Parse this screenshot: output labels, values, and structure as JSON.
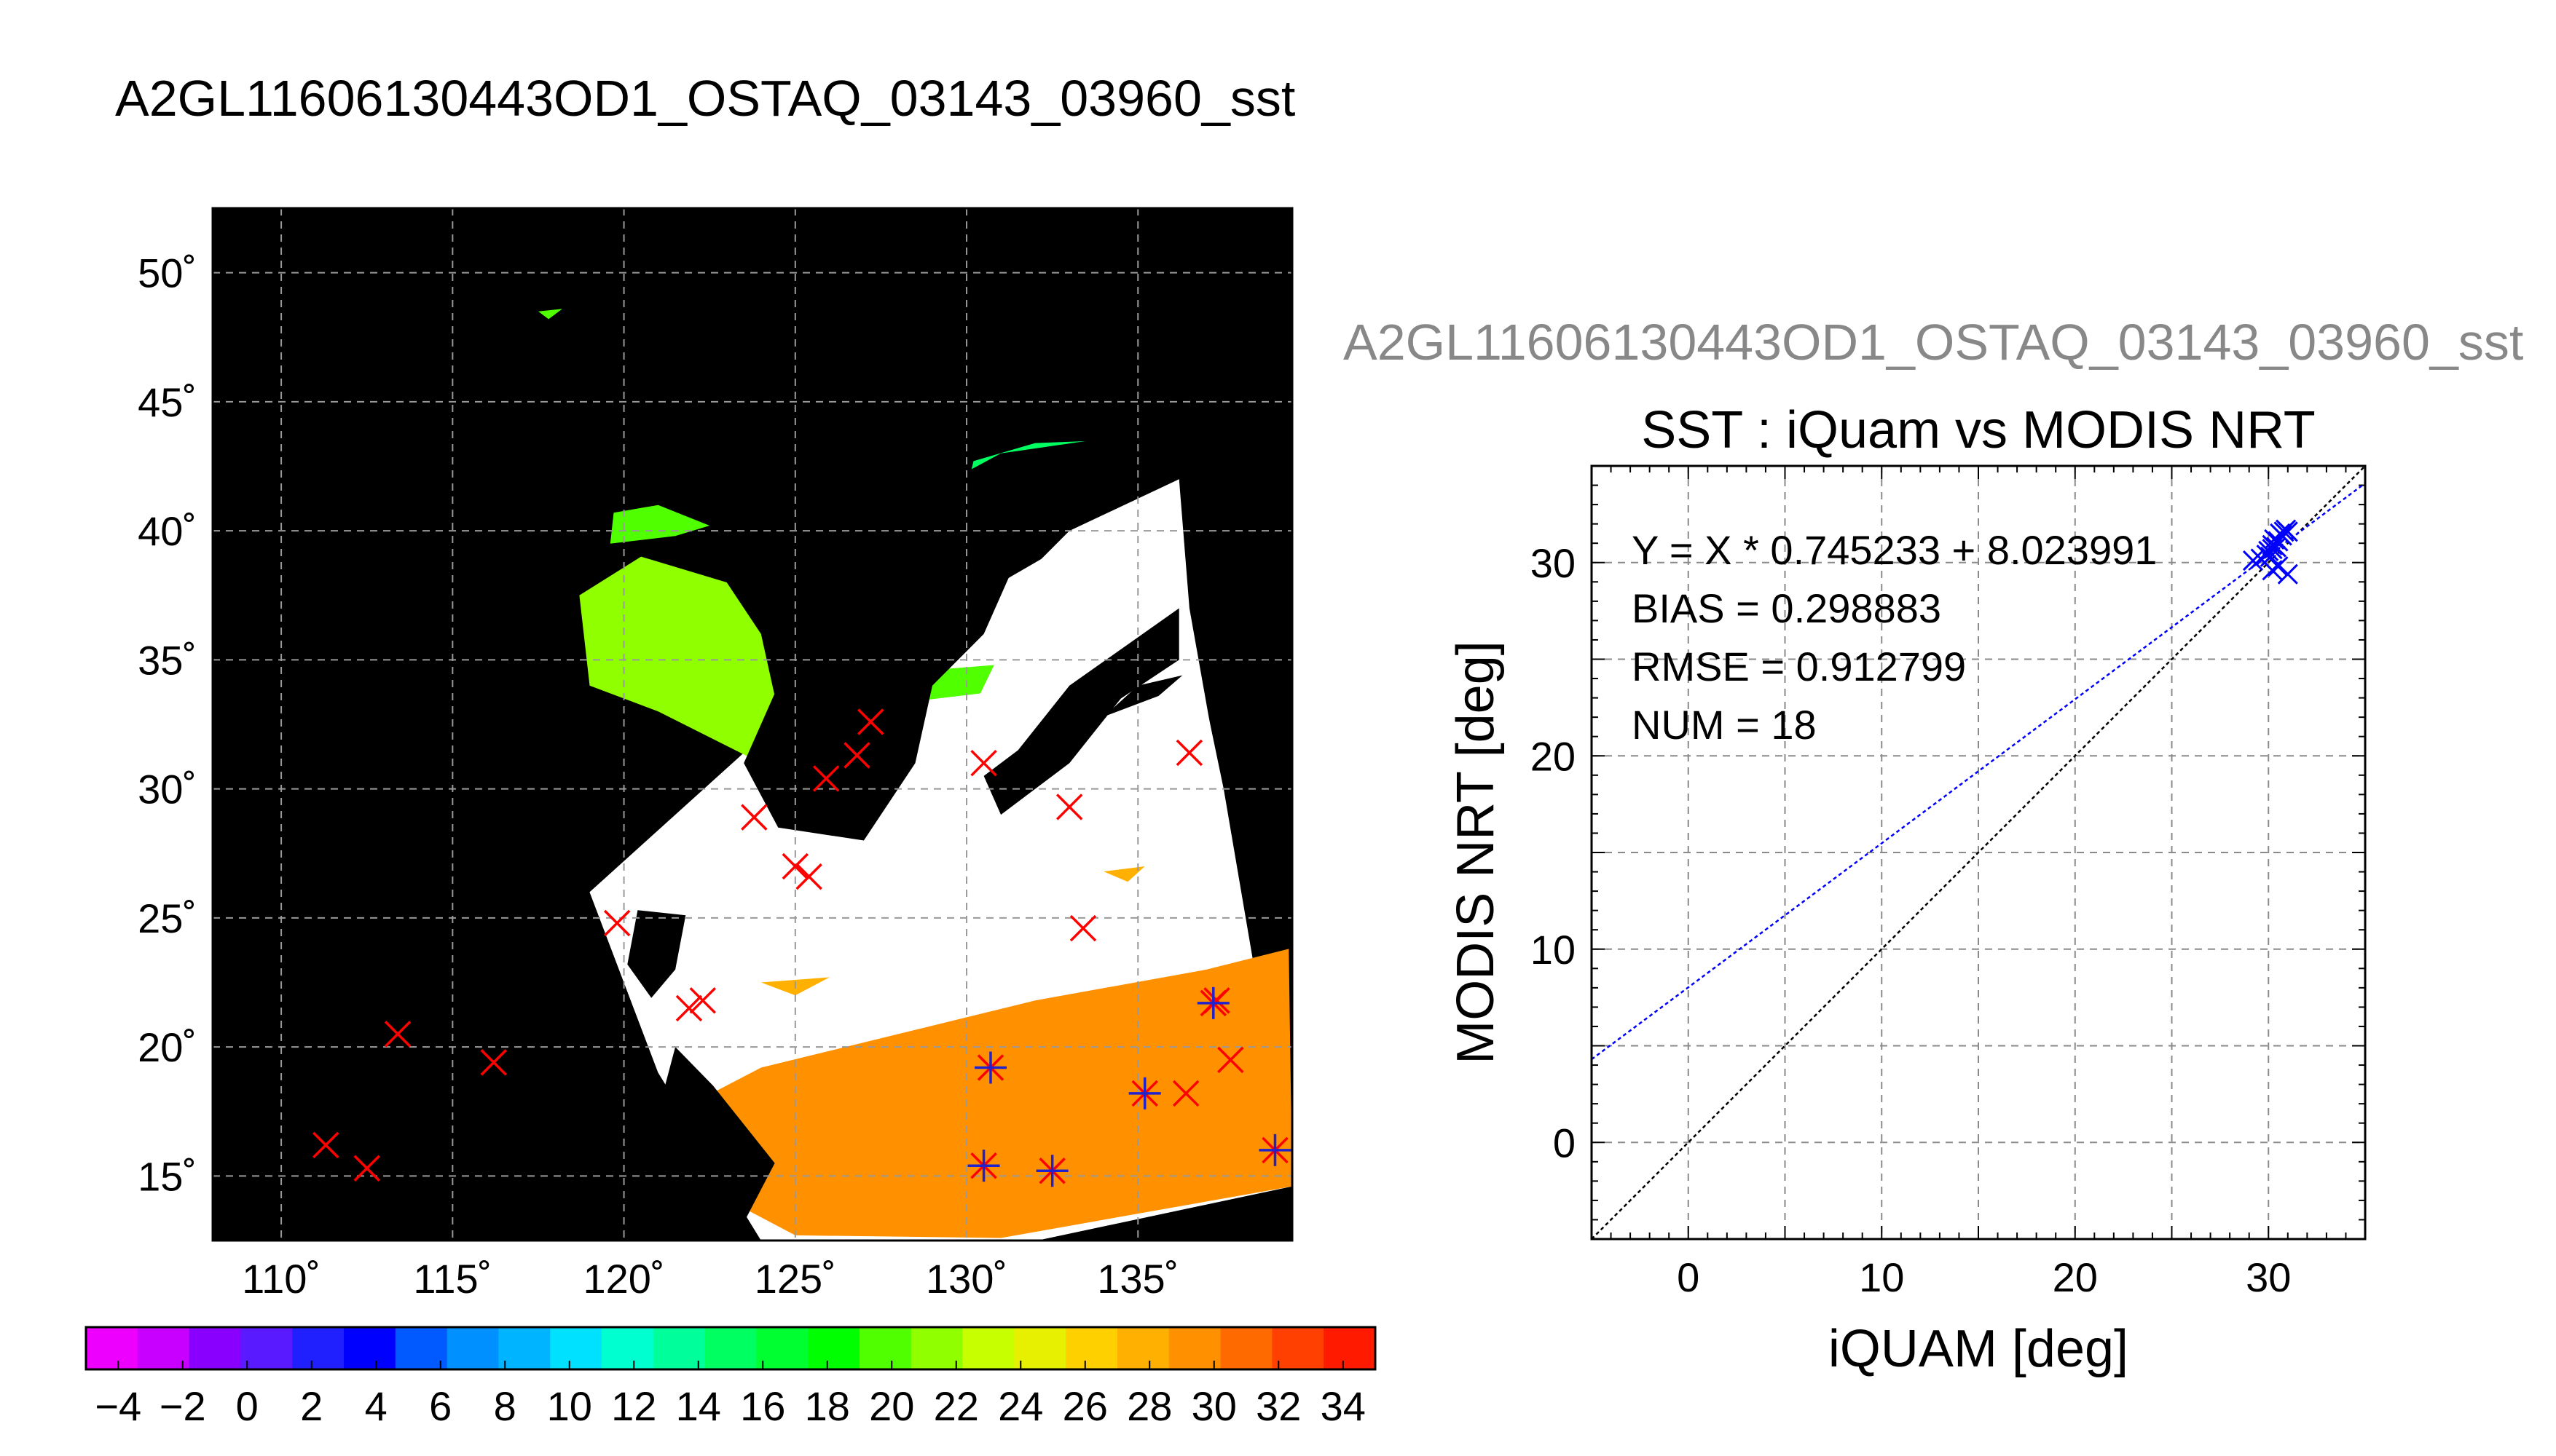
{
  "figure_title": "A2GL11606130443OD1_OSTAQ_03143_03960_sst",
  "chart_data": [
    {
      "type": "map",
      "xlim": [
        108,
        139.5
      ],
      "ylim": [
        12.5,
        52.5
      ],
      "lon_ticks": [
        110,
        115,
        120,
        125,
        130,
        135
      ],
      "lon_tick_labels": [
        "110˚",
        "115˚",
        "120˚",
        "125˚",
        "130˚",
        "135˚"
      ],
      "lat_ticks": [
        15,
        20,
        25,
        30,
        35,
        40,
        45,
        50
      ],
      "lat_tick_labels": [
        "15˚",
        "20˚",
        "25˚",
        "30˚",
        "35˚",
        "40˚",
        "45˚",
        "50˚"
      ],
      "grid": true,
      "background_color": "#000000",
      "swath_polygon": [
        [
          119,
          26
        ],
        [
          131,
          38
        ],
        [
          136.2,
          42
        ],
        [
          136.5,
          37
        ],
        [
          139.5,
          14.6
        ],
        [
          131,
          12.2
        ],
        [
          124,
          12.5
        ],
        [
          121,
          19
        ]
      ],
      "land_polygons": [
        [
          [
            127,
            28
          ],
          [
            128.5,
            31
          ],
          [
            129,
            34
          ],
          [
            130.5,
            36
          ],
          [
            131.5,
            39
          ],
          [
            133,
            41
          ],
          [
            136.2,
            42
          ],
          [
            136.2,
            44
          ],
          [
            131,
            43
          ],
          [
            127.5,
            40.5
          ],
          [
            126,
            37
          ],
          [
            124.5,
            34
          ],
          [
            123.5,
            31
          ],
          [
            124.5,
            28.5
          ]
        ],
        [
          [
            131,
            29
          ],
          [
            133,
            31
          ],
          [
            134.5,
            33.5
          ],
          [
            136.2,
            35
          ],
          [
            136.2,
            37
          ],
          [
            133,
            34
          ],
          [
            131.5,
            31.5
          ],
          [
            130.5,
            30.5
          ]
        ],
        [
          [
            134,
            32.8
          ],
          [
            135.6,
            33.6
          ],
          [
            136.3,
            34.4
          ],
          [
            135,
            34
          ]
        ],
        [
          [
            120.4,
            25.3
          ],
          [
            121.8,
            25.1
          ],
          [
            121.5,
            23
          ],
          [
            120.8,
            21.9
          ],
          [
            120.1,
            23.2
          ]
        ],
        [
          [
            121.5,
            20
          ],
          [
            121,
            17.5
          ],
          [
            121.6,
            14
          ],
          [
            123.5,
            13.2
          ],
          [
            124.4,
            15.5
          ],
          [
            122.6,
            18.5
          ]
        ]
      ],
      "cloud_polygons": [
        [
          [
            119,
            26
          ],
          [
            126.5,
            35
          ],
          [
            129,
            36.5
          ],
          [
            131.5,
            38
          ],
          [
            133,
            40
          ],
          [
            136.2,
            42
          ],
          [
            136.4,
            37
          ],
          [
            137.5,
            30
          ],
          [
            139.3,
            16
          ],
          [
            131,
            19.5
          ],
          [
            125,
            21
          ],
          [
            121,
            19
          ]
        ]
      ],
      "sst_patches": [
        {
          "value": 21,
          "points": [
            [
              119,
              34
            ],
            [
              121,
              33
            ],
            [
              124,
              31
            ],
            [
              124.5,
              33
            ],
            [
              124,
              36
            ],
            [
              123,
              38
            ],
            [
              120.5,
              39
            ],
            [
              118.7,
              37.5
            ]
          ]
        },
        {
          "value": 21,
          "points": [
            [
              125,
              33
            ],
            [
              127,
              32.5
            ],
            [
              127.5,
              34
            ],
            [
              126,
              36
            ],
            [
              125,
              35
            ]
          ]
        },
        {
          "value": 20,
          "points": [
            [
              119.6,
              39.5
            ],
            [
              121.5,
              39.8
            ],
            [
              122.5,
              40.2
            ],
            [
              121,
              41
            ],
            [
              119.7,
              40.7
            ]
          ]
        },
        {
          "value": 15,
          "points": [
            [
              130,
              41.6
            ],
            [
              133,
              42.4
            ],
            [
              135,
              43.1
            ],
            [
              136,
              43.6
            ],
            [
              132,
              43.4
            ],
            [
              130.2,
              42.7
            ]
          ]
        },
        {
          "value": 19,
          "points": [
            [
              128.5,
              33.4
            ],
            [
              130.4,
              33.7
            ],
            [
              130.8,
              34.8
            ],
            [
              128.9,
              34.6
            ]
          ]
        },
        {
          "value": 19,
          "points": [
            [
              117.5,
              48.5
            ],
            [
              118.2,
              48.6
            ],
            [
              117.8,
              48.2
            ]
          ]
        },
        {
          "value": 27,
          "points": [
            [
              124,
              22.5
            ],
            [
              126,
              22.7
            ],
            [
              125,
              22
            ]
          ]
        },
        {
          "value": 27,
          "points": [
            [
              134,
              26.8
            ],
            [
              135.2,
              27
            ],
            [
              134.7,
              26.4
            ]
          ]
        },
        {
          "value": 30,
          "points": [
            [
              121.4,
              17.4
            ],
            [
              124,
              19.2
            ],
            [
              128,
              20.5
            ],
            [
              132,
              21.8
            ],
            [
              137,
              23
            ],
            [
              139.4,
              23.8
            ],
            [
              139.5,
              14.6
            ],
            [
              131,
              12.6
            ],
            [
              125,
              12.7
            ],
            [
              122,
              14.8
            ]
          ]
        }
      ],
      "markers_x": [
        [
          111.3,
          16.2
        ],
        [
          112.5,
          15.3
        ],
        [
          113.4,
          20.5
        ],
        [
          116.2,
          19.4
        ],
        [
          119.8,
          24.8
        ],
        [
          121.9,
          21.5
        ],
        [
          122.3,
          21.8
        ],
        [
          123.8,
          28.9
        ],
        [
          125,
          27
        ],
        [
          125.4,
          26.6
        ],
        [
          125.9,
          30.4
        ],
        [
          126.8,
          31.3
        ],
        [
          127.2,
          32.6
        ],
        [
          130.5,
          31
        ],
        [
          133,
          29.3
        ],
        [
          133.4,
          24.6
        ],
        [
          136.4,
          18.2
        ],
        [
          136.5,
          31.4
        ],
        [
          137.3,
          21.8
        ],
        [
          137.7,
          19.5
        ]
      ],
      "markers_plus": [
        [
          130.5,
          15.4
        ],
        [
          130.7,
          19.2
        ],
        [
          132.5,
          15.2
        ],
        [
          135.2,
          18.2
        ],
        [
          137.2,
          21.7
        ],
        [
          139,
          16
        ]
      ],
      "marker_colors": {
        "cross": "#ff0000",
        "plus": "#2222cc"
      }
    },
    {
      "type": "colorbar",
      "range": [
        -5,
        35
      ],
      "tick_values": [
        -4,
        -2,
        0,
        2,
        4,
        6,
        8,
        10,
        12,
        14,
        16,
        18,
        20,
        22,
        24,
        26,
        28,
        30,
        32,
        34
      ],
      "tick_labels": [
        "−4",
        "−2",
        "0",
        "2",
        "4",
        "6",
        "8",
        "10",
        "12",
        "14",
        "16",
        "18",
        "20",
        "22",
        "24",
        "26",
        "28",
        "30",
        "32",
        "34"
      ],
      "colors": [
        "#ee00ff",
        "#c800ff",
        "#8a00ff",
        "#5a1aff",
        "#2020ff",
        "#0000ff",
        "#005aff",
        "#0090ff",
        "#00b4ff",
        "#00e0ff",
        "#00ffd0",
        "#00ff9a",
        "#00ff60",
        "#00ff30",
        "#00ff00",
        "#50ff00",
        "#90ff00",
        "#c8ff00",
        "#e6f000",
        "#ffd000",
        "#ffb000",
        "#ff9000",
        "#ff6a00",
        "#ff4000",
        "#ff1a00"
      ]
    },
    {
      "type": "scatter",
      "title": "SST : iQuam vs MODIS NRT",
      "xlabel": "iQUAM [deg]",
      "ylabel": "MODIS NRT [deg]",
      "xlim": [
        -5,
        35
      ],
      "ylim": [
        -5,
        35
      ],
      "xticks": [
        0,
        10,
        20,
        30
      ],
      "yticks": [
        0,
        10,
        20,
        30
      ],
      "grid": true,
      "annotations": [
        "Y = X * 0.745233 + 8.023991",
        "BIAS = 0.298883",
        "RMSE = 0.912799",
        "NUM = 18"
      ],
      "fit": {
        "slope": 0.745233,
        "intercept": 8.023991,
        "color": "#0000ff"
      },
      "identity_line_color": "#000000",
      "point_color": "#0000ff",
      "points": [
        [
          29.2,
          30.1
        ],
        [
          29.6,
          30.2
        ],
        [
          29.9,
          30.4
        ],
        [
          30,
          30.6
        ],
        [
          30.1,
          30.3
        ],
        [
          30.2,
          30.9
        ],
        [
          30.2,
          30.7
        ],
        [
          30.3,
          31.2
        ],
        [
          30.4,
          30.8
        ],
        [
          30.5,
          31.1
        ],
        [
          30.6,
          31.5
        ],
        [
          30.7,
          31.4
        ],
        [
          30.8,
          31.6
        ],
        [
          30.9,
          31.7
        ],
        [
          31,
          31.6
        ],
        [
          30.2,
          29.6
        ],
        [
          30.5,
          29.8
        ],
        [
          31,
          29.4
        ]
      ]
    }
  ]
}
